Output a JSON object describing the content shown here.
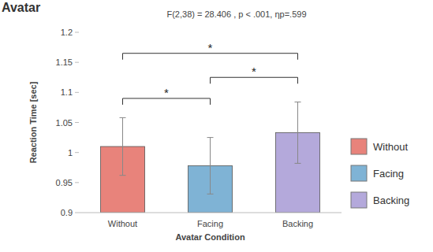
{
  "chart_data": {
    "type": "bar",
    "title": "Avatar",
    "subtitle": "F(2,38) = 28.406 , p < .001, ηp=.599",
    "x_label": "Avatar Condition",
    "y_label": "Reaction Time [sec]",
    "categories": [
      "Without",
      "Facing",
      "Backing"
    ],
    "values": [
      1.01,
      0.978,
      1.033
    ],
    "errors": [
      0.048,
      0.047,
      0.051
    ],
    "colors": [
      "#e8837b",
      "#7fb3d5",
      "#b4a9db"
    ],
    "ylim": [
      0.9,
      1.2
    ],
    "yticks": [
      0.9,
      0.95,
      1,
      1.05,
      1.1,
      1.15,
      1.2
    ],
    "grid": false,
    "legend": "right",
    "comparisons": [
      {
        "from": 0,
        "to": 1,
        "y": 1.09,
        "label": "*"
      },
      {
        "from": 1,
        "to": 2,
        "y": 1.125,
        "label": "*"
      },
      {
        "from": 0,
        "to": 2,
        "y": 1.165,
        "label": "*"
      }
    ]
  }
}
